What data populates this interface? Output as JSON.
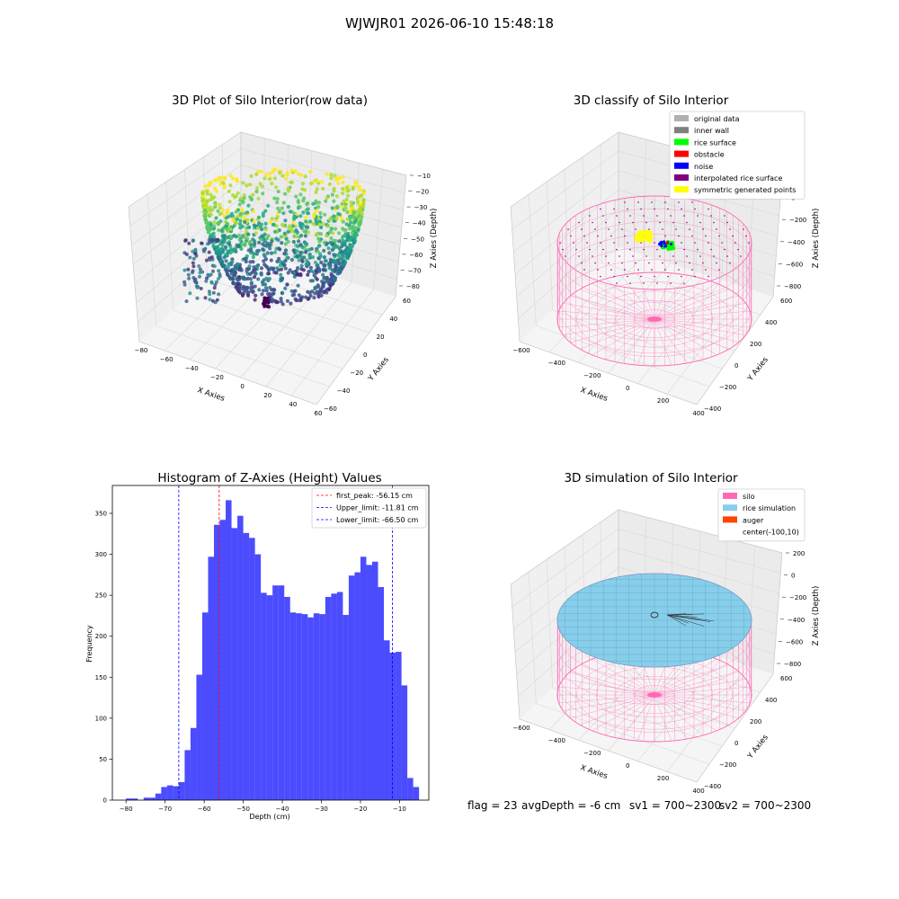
{
  "figure_title": "WJWJR01 2026-06-10 15:48:18",
  "status": {
    "flag": "flag = 23",
    "avg_depth": "avgDepth = -6 cm",
    "sv1": "sv1 = 700~2300",
    "sv2": "sv2 = 700~2300"
  },
  "colors": {
    "pink": "#ff69b4",
    "skyblue": "#87ceeb",
    "orangered": "#ff4500",
    "hist_bar": "#0000ff",
    "peak_line": "#ff0000",
    "limit_line": "#0000ff"
  },
  "chart_data": [
    {
      "type": "scatter",
      "projection": "3d",
      "title": "3D Plot of Silo Interior(row data)",
      "xlabel": "X Axies",
      "ylabel": "Y Axies",
      "zlabel": "Z Axies (Depth)",
      "xticks": [
        "−80",
        "−60",
        "−40",
        "−20",
        "0",
        "20",
        "40",
        "60"
      ],
      "yticks": [
        "−60",
        "−40",
        "−20",
        "0",
        "20",
        "40",
        "60"
      ],
      "zticks": [
        "−10",
        "−20",
        "−30",
        "−40",
        "−50",
        "−60",
        "−70",
        "−80"
      ],
      "xlim": [
        -85,
        70
      ],
      "ylim": [
        -65,
        65
      ],
      "zlim": [
        -85,
        -5
      ],
      "colormap": "viridis",
      "grid": true
    },
    {
      "type": "scatter",
      "projection": "3d",
      "title": "3D classify of Silo Interior",
      "xlabel": "X Axies",
      "ylabel": "Y Axies",
      "zlabel": "Z Axies (Depth)",
      "xticks": [
        "−600",
        "−400",
        "−200",
        "0",
        "200",
        "400"
      ],
      "yticks": [
        "−400",
        "−200",
        "0",
        "200",
        "400",
        "600"
      ],
      "zticks": [
        "200",
        "0",
        "−200",
        "−400",
        "−600",
        "−800"
      ],
      "legend_position": "top-right",
      "legend": [
        {
          "label": "original data",
          "color": "#b0b0b0"
        },
        {
          "label": "inner wall",
          "color": "#808080"
        },
        {
          "label": "rice surface",
          "color": "#00ff00"
        },
        {
          "label": "obstacle",
          "color": "#ff0000"
        },
        {
          "label": "noise",
          "color": "#0000ff"
        },
        {
          "label": "interpolated rice surface",
          "color": "#800080"
        },
        {
          "label": "symmetric generated points",
          "color": "#ffff00"
        }
      ],
      "grid": true
    },
    {
      "type": "bar",
      "title": "Histogram of Z-Axies (Height) Values",
      "xlabel": "Depth (cm)",
      "ylabel": "Frequency",
      "xlim": [
        -83.5,
        -2.5
      ],
      "ylim": [
        0,
        384
      ],
      "xticks": [
        -80,
        -70,
        -60,
        -50,
        -40,
        -30,
        -20,
        -10
      ],
      "yticks": [
        0,
        50,
        100,
        150,
        200,
        250,
        300,
        350
      ],
      "bin_start": -80,
      "bin_width": 1.5,
      "values": [
        2,
        2,
        0,
        3,
        3,
        8,
        16,
        18,
        17,
        22,
        61,
        88,
        153,
        229,
        297,
        336,
        342,
        366,
        332,
        347,
        326,
        320,
        300,
        253,
        250,
        262,
        262,
        248,
        229,
        228,
        227,
        223,
        228,
        227,
        248,
        252,
        254,
        226,
        274,
        278,
        297,
        287,
        291,
        260,
        195,
        180,
        181,
        140,
        27,
        16
      ],
      "lines": [
        {
          "label": "first_peak: -56.15 cm",
          "x": -56.15,
          "color": "#ff0000"
        },
        {
          "label": "Upper_limit: -11.81 cm",
          "x": -11.81,
          "color": "#0000ff"
        },
        {
          "label": "Lower_limit: -66.50 cm",
          "x": -66.5,
          "color": "#0000ff"
        }
      ],
      "legend_position": "top-right",
      "grid": false
    },
    {
      "type": "scatter",
      "projection": "3d",
      "title": "3D simulation of Silo Interior",
      "xlabel": "X Axies",
      "ylabel": "Y Axies",
      "zlabel": "Z Axies (Depth)",
      "xticks": [
        "−600",
        "−400",
        "−200",
        "0",
        "200",
        "400"
      ],
      "yticks": [
        "−400",
        "−200",
        "0",
        "200",
        "400",
        "600"
      ],
      "zticks": [
        "200",
        "0",
        "−200",
        "−400",
        "−600",
        "−800"
      ],
      "legend_position": "top-right",
      "legend": [
        {
          "label": "silo",
          "color": "#ff69b4"
        },
        {
          "label": "rice simulation",
          "color": "#87ceeb"
        },
        {
          "label": "auger",
          "color": "#ff4500"
        },
        {
          "label": "center(-100,10)",
          "color": ""
        }
      ],
      "grid": true
    }
  ]
}
